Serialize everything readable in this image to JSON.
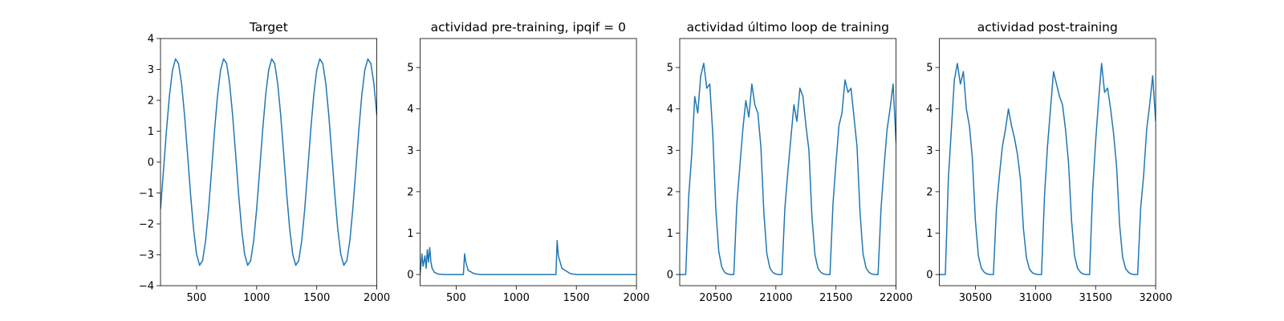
{
  "chart_data": [
    {
      "type": "line",
      "title": "Target",
      "color": "#1f77b4",
      "x": [
        200,
        225,
        250,
        275,
        300,
        325,
        350,
        375,
        400,
        425,
        450,
        475,
        500,
        525,
        550,
        575,
        600,
        625,
        650,
        675,
        700,
        725,
        750,
        775,
        800,
        825,
        850,
        875,
        900,
        925,
        950,
        975,
        1000,
        1025,
        1050,
        1075,
        1100,
        1125,
        1150,
        1175,
        1200,
        1225,
        1250,
        1275,
        1300,
        1325,
        1350,
        1375,
        1400,
        1425,
        1450,
        1475,
        1500,
        1525,
        1550,
        1575,
        1600,
        1625,
        1650,
        1675,
        1700,
        1725,
        1750,
        1775,
        1800,
        1825,
        1850,
        1875,
        1900,
        1925,
        1950,
        1975,
        2000
      ],
      "values": [
        -1.52,
        -0.26,
        1.04,
        2.17,
        2.98,
        3.34,
        3.19,
        2.55,
        1.52,
        0.26,
        -1.04,
        -2.17,
        -2.98,
        -3.34,
        -3.19,
        -2.55,
        -1.52,
        -0.26,
        1.04,
        2.17,
        2.98,
        3.34,
        3.19,
        2.55,
        1.52,
        0.26,
        -1.04,
        -2.17,
        -2.98,
        -3.34,
        -3.19,
        -2.55,
        -1.52,
        -0.26,
        1.04,
        2.17,
        2.98,
        3.34,
        3.19,
        2.55,
        1.52,
        0.26,
        -1.04,
        -2.17,
        -2.98,
        -3.34,
        -3.19,
        -2.55,
        -1.52,
        -0.26,
        1.04,
        2.17,
        2.98,
        3.34,
        3.19,
        2.55,
        1.52,
        0.26,
        -1.04,
        -2.17,
        -2.98,
        -3.34,
        -3.19,
        -2.55,
        -1.52,
        -0.26,
        1.04,
        2.17,
        2.98,
        3.34,
        3.19,
        2.55,
        1.52
      ],
      "xlim": [
        200,
        2000
      ],
      "xticks": [
        500,
        1000,
        1500,
        2000
      ],
      "ylim": [
        -4,
        4
      ],
      "yticks": [
        {
          "value": -4,
          "label": "−4"
        },
        {
          "value": -3,
          "label": "−3"
        },
        {
          "value": -2,
          "label": "−2"
        },
        {
          "value": -1,
          "label": "−1"
        },
        0,
        1,
        2,
        3,
        4
      ]
    },
    {
      "type": "line",
      "title": "actividad pre-training, ipqif = 0",
      "color": "#1f77b4",
      "x": [
        200,
        215,
        225,
        240,
        250,
        260,
        270,
        280,
        290,
        300,
        320,
        350,
        400,
        560,
        570,
        580,
        600,
        650,
        700,
        1330,
        1340,
        1350,
        1380,
        1450,
        1500,
        2000
      ],
      "values": [
        0,
        0.5,
        0.2,
        0.45,
        0.15,
        0.6,
        0.3,
        0.65,
        0.3,
        0.15,
        0.05,
        0.01,
        0,
        0,
        0.5,
        0.3,
        0.1,
        0.02,
        0,
        0,
        0.82,
        0.45,
        0.15,
        0.02,
        0,
        0
      ],
      "xlim": [
        200,
        2000
      ],
      "xticks": [
        500,
        1000,
        1500,
        2000
      ],
      "ylim": [
        -0.27,
        5.7
      ],
      "yticks": [
        0,
        1,
        2,
        3,
        4,
        5
      ]
    },
    {
      "type": "line",
      "title": "actividad último loop de training",
      "color": "#1f77b4",
      "x": [
        20200,
        20225,
        20250,
        20275,
        20300,
        20325,
        20350,
        20375,
        20400,
        20425,
        20450,
        20475,
        20500,
        20525,
        20550,
        20575,
        20600,
        20625,
        20650,
        20675,
        20700,
        20725,
        20750,
        20775,
        20800,
        20825,
        20850,
        20875,
        20900,
        20925,
        20950,
        20975,
        21000,
        21025,
        21050,
        21075,
        21100,
        21125,
        21150,
        21175,
        21200,
        21225,
        21250,
        21275,
        21300,
        21325,
        21350,
        21375,
        21400,
        21425,
        21450,
        21475,
        21500,
        21525,
        21550,
        21575,
        21600,
        21625,
        21650,
        21675,
        21700,
        21725,
        21750,
        21775,
        21800,
        21825,
        21850,
        21875,
        21900,
        21925,
        21950,
        21975,
        22000
      ],
      "values": [
        0,
        0,
        0,
        1.9,
        2.9,
        4.3,
        3.9,
        4.8,
        5.1,
        4.5,
        4.6,
        3.4,
        1.6,
        0.55,
        0.18,
        0.05,
        0.01,
        0,
        0,
        1.7,
        2.6,
        3.5,
        4.2,
        3.8,
        4.6,
        4.1,
        3.9,
        3.1,
        1.5,
        0.5,
        0.16,
        0.05,
        0.01,
        0,
        0,
        1.6,
        2.5,
        3.3,
        4.1,
        3.7,
        4.5,
        4.3,
        3.6,
        3.0,
        1.4,
        0.48,
        0.15,
        0.05,
        0.01,
        0,
        0,
        1.7,
        2.7,
        3.6,
        3.9,
        4.7,
        4.4,
        4.5,
        3.8,
        3.1,
        1.5,
        0.5,
        0.16,
        0.05,
        0.01,
        0,
        0,
        1.6,
        2.6,
        3.5,
        4.0,
        4.6,
        3.2
      ],
      "xlim": [
        20200,
        22000
      ],
      "xticks": [
        20500,
        21000,
        21500,
        22000
      ],
      "ylim": [
        -0.27,
        5.7
      ],
      "yticks": [
        0,
        1,
        2,
        3,
        4,
        5
      ]
    },
    {
      "type": "line",
      "title": "actividad post-training",
      "color": "#1f77b4",
      "x": [
        30200,
        30225,
        30250,
        30275,
        30300,
        30325,
        30350,
        30375,
        30400,
        30425,
        30450,
        30475,
        30500,
        30525,
        30550,
        30575,
        30600,
        30625,
        30650,
        30675,
        30700,
        30725,
        30750,
        30775,
        30800,
        30825,
        30850,
        30875,
        30900,
        30925,
        30950,
        30975,
        31000,
        31025,
        31050,
        31075,
        31100,
        31125,
        31150,
        31175,
        31200,
        31225,
        31250,
        31275,
        31300,
        31325,
        31350,
        31375,
        31400,
        31425,
        31450,
        31475,
        31500,
        31525,
        31550,
        31575,
        31600,
        31625,
        31650,
        31675,
        31700,
        31725,
        31750,
        31775,
        31800,
        31825,
        31850,
        31875,
        31900,
        31925,
        31950,
        31975,
        32000
      ],
      "values": [
        0,
        0,
        0,
        2.3,
        3.5,
        4.7,
        5.1,
        4.6,
        4.9,
        4.0,
        3.6,
        2.8,
        1.3,
        0.45,
        0.15,
        0.05,
        0.01,
        0,
        0,
        1.6,
        2.4,
        3.1,
        3.5,
        4.0,
        3.6,
        3.3,
        2.9,
        2.3,
        1.1,
        0.4,
        0.13,
        0.04,
        0.01,
        0,
        0,
        1.9,
        3.1,
        4.0,
        4.9,
        4.6,
        4.3,
        4.1,
        3.5,
        2.7,
        1.3,
        0.45,
        0.15,
        0.05,
        0.01,
        0,
        0,
        2.0,
        3.2,
        4.2,
        5.1,
        4.4,
        4.5,
        4.0,
        3.4,
        2.6,
        1.2,
        0.42,
        0.14,
        0.05,
        0.01,
        0,
        0,
        1.6,
        2.4,
        3.5,
        4.1,
        4.8,
        3.7
      ],
      "xlim": [
        30200,
        32000
      ],
      "xticks": [
        30500,
        31000,
        31500,
        32000
      ],
      "ylim": [
        -0.27,
        5.7
      ],
      "yticks": [
        0,
        1,
        2,
        3,
        4,
        5
      ]
    }
  ]
}
